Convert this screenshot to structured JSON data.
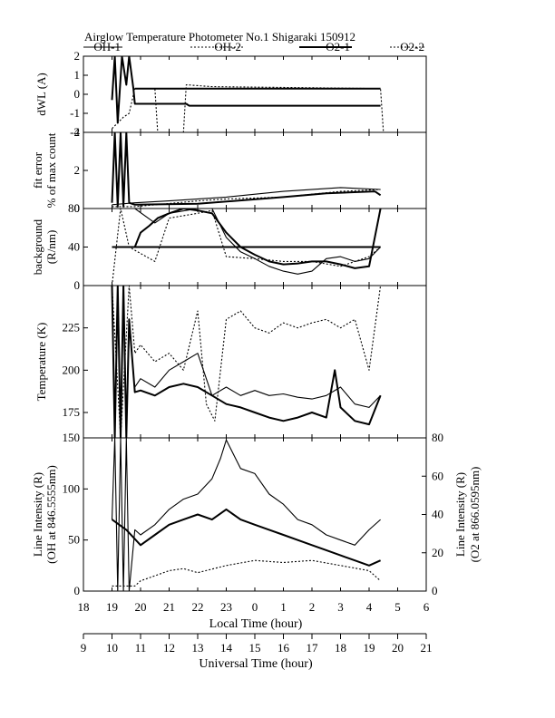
{
  "chart_data": {
    "type": "line",
    "title": "Airglow Temperature Photometer No.1  Shigaraki  150912",
    "legend": {
      "entries": [
        "OH-1",
        "OH-2",
        "O2-1",
        "O2-2"
      ],
      "styles": {
        "OH-1": "solid-thin",
        "OH-2": "dotted",
        "O2-1": "solid-thick",
        "O2-2": "dotted"
      },
      "placement": "top"
    },
    "x_local": {
      "label": "Local Time (hour)",
      "ticks": [
        "18",
        "19",
        "20",
        "21",
        "22",
        "23",
        "0",
        "1",
        "2",
        "3",
        "4",
        "5",
        "6"
      ]
    },
    "x_ut": {
      "label": "Universal Time (hour)",
      "ticks": [
        "9",
        "10",
        "11",
        "12",
        "13",
        "14",
        "15",
        "16",
        "17",
        "18",
        "19",
        "20",
        "21"
      ],
      "range": [
        9,
        21
      ]
    },
    "panels": [
      {
        "id": "dwl",
        "ylabel": [
          "dWL (A)"
        ],
        "ylim": [
          -2,
          2
        ],
        "yticks": [
          "2",
          "1",
          "0",
          "-1",
          "-2"
        ],
        "series": [
          {
            "style": "thick",
            "x": [
              10.0,
              10.1,
              10.2,
              10.35,
              10.5,
              10.6,
              10.75,
              10.8,
              12.6,
              12.7,
              19.4
            ],
            "y": [
              -0.3,
              2,
              -1.5,
              2,
              0.5,
              2,
              0.3,
              -0.5,
              -0.5,
              -0.6,
              -0.6
            ]
          },
          {
            "style": "thick",
            "x": [
              10.8,
              13.2,
              13.3,
              19.4
            ],
            "y": [
              0.3,
              0.3,
              0.3,
              0.3
            ]
          },
          {
            "style": "dotted",
            "x": [
              10.0,
              10.2,
              10.4,
              10.6,
              10.8,
              11.5,
              11.6,
              12.5,
              12.6,
              13.5,
              13.6,
              19.4,
              19.5
            ],
            "y": [
              -1.8,
              -1.5,
              -1.2,
              -1.0,
              0.3,
              0.3,
              -2,
              -2,
              0.5,
              0.4,
              0.4,
              0.3,
              -2
            ]
          }
        ]
      },
      {
        "id": "fit_error",
        "ylabel": [
          "fit error",
          "% of max count"
        ],
        "ylim": [
          0,
          4
        ],
        "yticks": [
          "4",
          "2",
          "0"
        ],
        "series": [
          {
            "style": "thick",
            "x": [
              10.0,
              10.1,
              10.2,
              10.3,
              10.4,
              10.5,
              10.6,
              10.8,
              13.0,
              16.0,
              17.5,
              19.2,
              19.4
            ],
            "y": [
              0.3,
              4,
              0.1,
              4,
              0.1,
              4,
              0.3,
              0.2,
              0.25,
              0.6,
              0.8,
              0.9,
              0.7
            ]
          },
          {
            "style": "dotted",
            "x": [
              10.0,
              10.8,
              13.0,
              14.0,
              16.0,
              18.0,
              19.4
            ],
            "y": [
              0.1,
              0.1,
              0.4,
              0.5,
              0.6,
              0.9,
              1.0
            ]
          },
          {
            "style": "thin",
            "x": [
              10.0,
              10.8,
              12.0,
              14.0,
              16.0,
              18.0,
              19.4
            ],
            "y": [
              0.2,
              0.3,
              0.4,
              0.6,
              0.9,
              1.1,
              1.0
            ]
          }
        ]
      },
      {
        "id": "background",
        "ylabel": [
          "background",
          "(R/nm)"
        ],
        "ylim": [
          0,
          80
        ],
        "yticks": [
          "80",
          "40",
          "0"
        ],
        "series": [
          {
            "style": "thick",
            "x": [
              10.0,
              10.8,
              11.0,
              11.3,
              11.6,
              12.0,
              12.5,
              13.0,
              13.5,
              14.0,
              14.5,
              15.0,
              15.5,
              16.0,
              16.5,
              17.0,
              17.5,
              18.0,
              18.5,
              19.0,
              19.4
            ],
            "y": [
              40,
              40,
              55,
              62,
              70,
              75,
              80,
              78,
              75,
              55,
              40,
              32,
              25,
              22,
              23,
              25,
              25,
              22,
              18,
              20,
              80
            ]
          },
          {
            "style": "thin",
            "x": [
              10.8,
              11.5,
              12.0,
              13.0,
              13.5,
              14.0,
              14.5,
              15.0,
              15.5,
              16.0,
              16.5,
              17.0,
              17.5,
              18.0,
              18.5,
              19.0,
              19.4
            ],
            "y": [
              80,
              65,
              75,
              80,
              80,
              50,
              35,
              28,
              20,
              15,
              12,
              15,
              28,
              30,
              25,
              28,
              40
            ]
          },
          {
            "style": "dotted",
            "x": [
              10.0,
              10.3,
              10.6,
              11.5,
              12.0,
              13.0,
              13.5,
              14.0,
              15.0,
              16.0,
              17.0,
              18.0,
              19.0,
              19.4
            ],
            "y": [
              0,
              80,
              40,
              25,
              70,
              75,
              78,
              30,
              28,
              25,
              25,
              20,
              30,
              40
            ]
          },
          {
            "style": "thick-flat",
            "x": [
              10.0,
              13.0,
              13.5,
              17.0,
              18.0,
              19.4
            ],
            "y": [
              40,
              40,
              40,
              40,
              40,
              40
            ]
          }
        ]
      },
      {
        "id": "temperature",
        "ylabel": [
          "Temperature (K)"
        ],
        "ylim": [
          160,
          250
        ],
        "yticks": [
          "225",
          "200",
          "175"
        ],
        "series": [
          {
            "style": "thick",
            "x": [
              10.0,
              10.1,
              10.2,
              10.3,
              10.4,
              10.5,
              10.6,
              10.8,
              11.0,
              11.5,
              12.0,
              12.5,
              13.0,
              13.5,
              14.0,
              14.5,
              15.0,
              15.5,
              16.0,
              16.5,
              17.0,
              17.5,
              17.8,
              18.0,
              18.5,
              19.0,
              19.4
            ],
            "y": [
              250,
              160,
              250,
              160,
              250,
              160,
              230,
              187,
              188,
              185,
              190,
              192,
              190,
              185,
              180,
              178,
              175,
              172,
              170,
              172,
              175,
              172,
              200,
              178,
              170,
              168,
              185
            ]
          },
          {
            "style": "thin",
            "x": [
              10.8,
              11.0,
              11.5,
              12.0,
              12.5,
              13.0,
              13.5,
              14.0,
              14.5,
              15.0,
              15.5,
              16.0,
              16.5,
              17.0,
              17.5,
              18.0,
              18.5,
              19.0,
              19.4
            ],
            "y": [
              190,
              195,
              190,
              200,
              205,
              210,
              185,
              190,
              185,
              188,
              185,
              186,
              184,
              183,
              185,
              190,
              180,
              178,
              185
            ]
          },
          {
            "style": "dotted",
            "x": [
              10.0,
              10.3,
              10.6,
              10.8,
              11.0,
              11.5,
              12.0,
              12.5,
              13.0,
              13.3,
              13.6,
              14.0,
              14.5,
              15.0,
              15.5,
              16.0,
              16.5,
              17.0,
              17.5,
              18.0,
              18.5,
              19.0,
              19.4
            ],
            "y": [
              250,
              160,
              250,
              210,
              215,
              205,
              210,
              200,
              235,
              180,
              170,
              230,
              235,
              225,
              222,
              228,
              225,
              228,
              230,
              225,
              230,
              200,
              250
            ]
          }
        ]
      },
      {
        "id": "intensity",
        "ylabel": [
          "Line Intensity (R)",
          "(OH at 846.5555nm)"
        ],
        "ylabel_right": [
          "Line Intensity (R)",
          "(O2 at 866.0595nm)"
        ],
        "ylim": [
          0,
          150
        ],
        "ylim_right": [
          0,
          80
        ],
        "yticks": [
          "150",
          "100",
          "50",
          "0"
        ],
        "yticks_right": [
          "80",
          "60",
          "40",
          "20",
          "0"
        ],
        "series": [
          {
            "style": "thin",
            "x": [
              10.0,
              10.1,
              10.2,
              10.3,
              10.4,
              10.5,
              10.6,
              10.8,
              11.0,
              11.5,
              12.0,
              12.5,
              13.0,
              13.5,
              13.8,
              14.0,
              14.5,
              15.0,
              15.5,
              16.0,
              16.5,
              17.0,
              17.5,
              18.0,
              18.5,
              19.0,
              19.4
            ],
            "y": [
              70,
              150,
              0,
              150,
              0,
              150,
              0,
              60,
              55,
              65,
              80,
              90,
              95,
              110,
              130,
              148,
              120,
              115,
              95,
              85,
              70,
              65,
              55,
              50,
              45,
              60,
              70
            ]
          },
          {
            "style": "thick",
            "x": [
              10.0,
              10.5,
              11.0,
              11.5,
              12.0,
              12.5,
              13.0,
              13.5,
              14.0,
              14.5,
              15.0,
              15.5,
              16.0,
              16.5,
              17.0,
              17.5,
              18.0,
              18.5,
              19.0,
              19.4
            ],
            "y": [
              70,
              60,
              45,
              55,
              65,
              70,
              75,
              70,
              80,
              70,
              65,
              60,
              55,
              50,
              45,
              40,
              35,
              30,
              25,
              30
            ]
          },
          {
            "style": "dotted",
            "x": [
              10.0,
              10.8,
              11.0,
              11.5,
              12.0,
              12.5,
              13.0,
              14.0,
              15.0,
              16.0,
              17.0,
              18.0,
              19.0,
              19.4
            ],
            "y": [
              5,
              5,
              10,
              15,
              20,
              22,
              18,
              25,
              30,
              28,
              30,
              25,
              20,
              10
            ]
          }
        ]
      }
    ]
  }
}
